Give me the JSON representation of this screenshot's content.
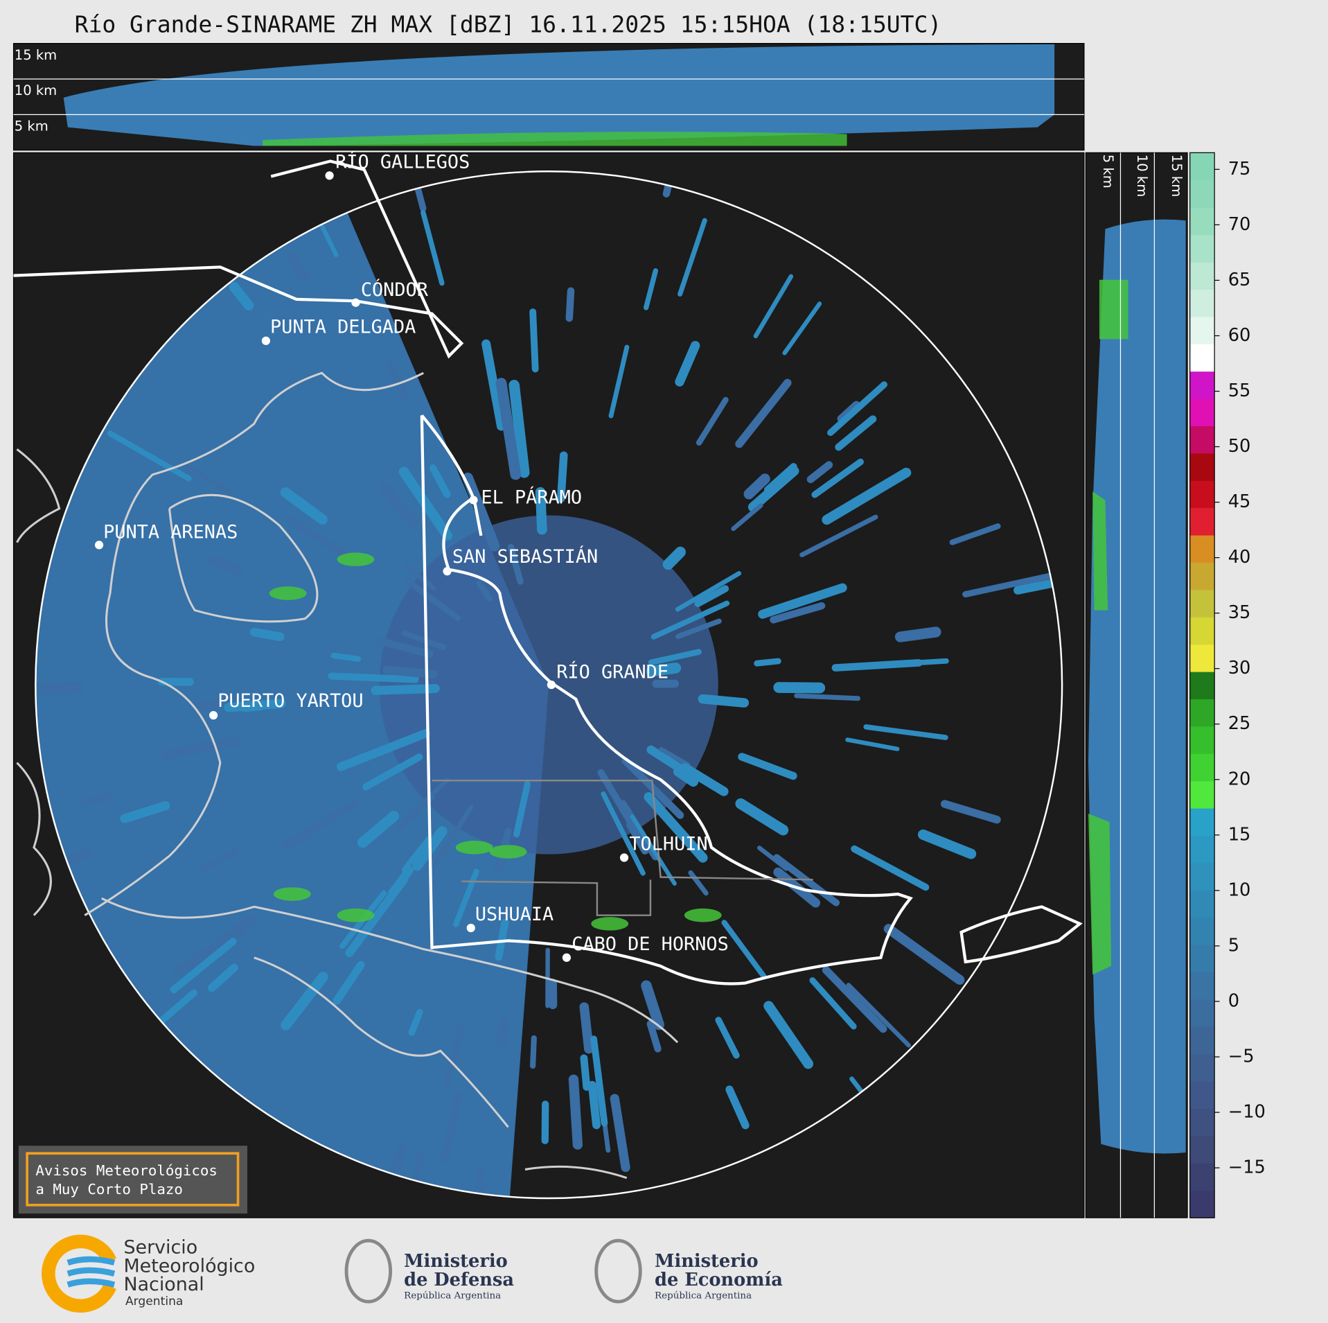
{
  "title": "Río Grande-SINARAME ZH MAX [dBZ] 16.11.2025 15:15HOA (18:15UTC)",
  "top_panel": {
    "height_labels": [
      "15 km",
      "10 km",
      "5 km"
    ]
  },
  "side_panel": {
    "height_labels": [
      "5 km",
      "10 km",
      "15 km"
    ]
  },
  "map": {
    "places": [
      "RÍO GALLEGOS",
      "CÓNDOR",
      "PUNTA DELGADA",
      "EL PÁRAMO",
      "SAN SEBASTIÁN",
      "PUNTA ARENAS",
      "PUERTO YARTOU",
      "RÍO GRANDE",
      "TOLHUIN",
      "USHUAIA",
      "CABO DE HORNOS"
    ]
  },
  "colorbar": {
    "lim": [
      -19.5,
      76.5
    ],
    "ticks": [
      {
        "value": -15,
        "label": "−15"
      },
      {
        "value": -10,
        "label": "−10"
      },
      {
        "value": -5,
        "label": "−5"
      },
      0,
      5,
      10,
      15,
      20,
      25,
      30,
      35,
      40,
      45,
      50,
      55,
      60,
      65,
      70,
      75
    ],
    "colors": [
      "#3a3b6c",
      "#3c426f",
      "#3e4a78",
      "#3f5181",
      "#3f5889",
      "#3e5f90",
      "#3d6697",
      "#3b6d9e",
      "#3974a4",
      "#367caa",
      "#3383b0",
      "#318ab6",
      "#2e92bc",
      "#2b99c2",
      "#28a2c9",
      "#50e83c",
      "#3fd232",
      "#36bf2c",
      "#2ea727",
      "#1f7a1c",
      "#eee83a",
      "#d6d634",
      "#c4c23a",
      "#c8a830",
      "#d88e22",
      "#e02030",
      "#c80e1c",
      "#a80810",
      "#c40c64",
      "#e010b4",
      "#d014c8",
      "#ffffff",
      "#e4f6ee",
      "#d0eee0",
      "#bce8d4",
      "#a8e2c8",
      "#98dcbe",
      "#8cd8b8",
      "#84d6b4"
    ]
  },
  "notice": {
    "lines": [
      "Avisos Meteorológicos",
      "a Muy Corto Plazo"
    ]
  },
  "logos": {
    "smn": [
      "Servicio",
      "Meteorológico",
      "Nacional",
      "Argentina"
    ],
    "defensa": [
      "Ministerio",
      "de Defensa",
      "República Argentina"
    ],
    "economia": [
      "Ministerio",
      "de Economía",
      "República Argentina"
    ]
  }
}
